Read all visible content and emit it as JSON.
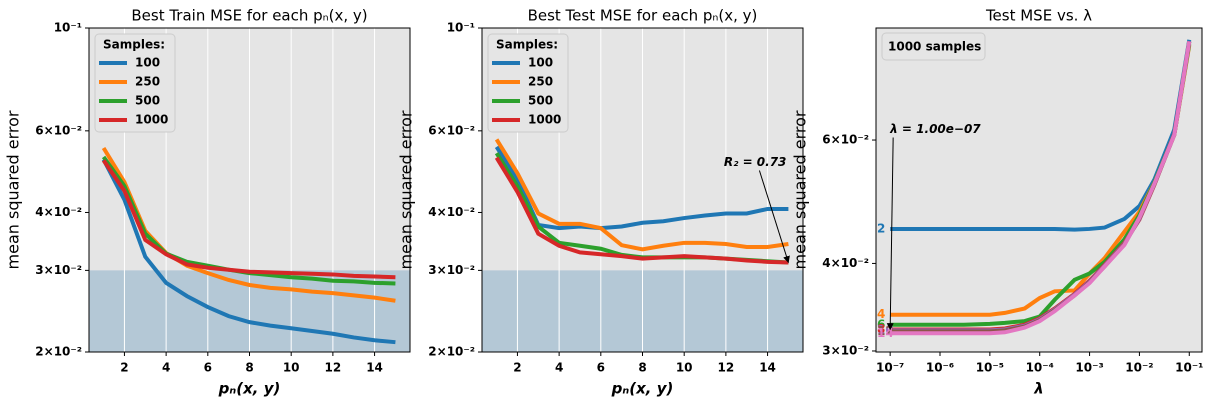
{
  "chart_data": [
    {
      "type": "line",
      "title": "Best Train MSE for each pₙ(x, y)",
      "xlabel": "pₙ(x, y)",
      "ylabel": "mean squared error",
      "x": [
        1,
        2,
        3,
        4,
        5,
        6,
        7,
        8,
        9,
        10,
        11,
        12,
        13,
        14,
        15
      ],
      "series": [
        {
          "name": "100",
          "color": "#1f77b4",
          "values": [
            0.052,
            0.0426,
            0.0321,
            0.0282,
            0.0264,
            0.025,
            0.0239,
            0.0232,
            0.0228,
            0.0225,
            0.0222,
            0.0219,
            0.0215,
            0.0212,
            0.021
          ]
        },
        {
          "name": "250",
          "color": "#ff7f0e",
          "values": [
            0.0551,
            0.0465,
            0.0365,
            0.0327,
            0.0307,
            0.0296,
            0.0286,
            0.0279,
            0.0275,
            0.0273,
            0.027,
            0.0268,
            0.0265,
            0.0262,
            0.0258
          ]
        },
        {
          "name": "500",
          "color": "#2ca02c",
          "values": [
            0.0527,
            0.0456,
            0.036,
            0.0326,
            0.0313,
            0.0307,
            0.0301,
            0.0296,
            0.0293,
            0.029,
            0.0288,
            0.0285,
            0.0284,
            0.0282,
            0.0281
          ]
        },
        {
          "name": "1000",
          "color": "#d62728",
          "values": [
            0.0518,
            0.0445,
            0.0349,
            0.0325,
            0.0309,
            0.0304,
            0.0301,
            0.0298,
            0.0297,
            0.0296,
            0.0295,
            0.0294,
            0.0292,
            0.0291,
            0.029
          ]
        }
      ],
      "legend_title": "Samples:",
      "legend_loc": "upper left",
      "xlim": [
        0.3,
        15.7
      ],
      "ylim": [
        0.02,
        0.1
      ],
      "log_y": true,
      "grid": "x",
      "xticks": [
        2,
        4,
        6,
        8,
        10,
        12,
        14
      ],
      "yticks": [
        {
          "value": 0.02,
          "label": "2×10⁻²"
        },
        {
          "value": 0.03,
          "label": "3×10⁻²"
        },
        {
          "value": 0.04,
          "label": "4×10⁻²"
        },
        {
          "value": 0.06,
          "label": "6×10⁻²"
        },
        {
          "value": 0.1,
          "label": "10⁻¹"
        }
      ],
      "shade_below": 0.03,
      "shade_color": "#b4c8d6"
    },
    {
      "type": "line",
      "title": "Best Test MSE for each pₙ(x, y)",
      "xlabel": "pₙ(x, y)",
      "ylabel": "mean squared error",
      "x": [
        1,
        2,
        3,
        4,
        5,
        6,
        7,
        8,
        9,
        10,
        11,
        12,
        13,
        14,
        15
      ],
      "series": [
        {
          "name": "100",
          "color": "#1f77b4",
          "values": [
            0.0554,
            0.0472,
            0.0376,
            0.037,
            0.0373,
            0.037,
            0.0373,
            0.038,
            0.0383,
            0.0389,
            0.0394,
            0.0398,
            0.0398,
            0.0407,
            0.0407
          ]
        },
        {
          "name": "250",
          "color": "#ff7f0e",
          "values": [
            0.0575,
            0.0486,
            0.0398,
            0.0378,
            0.0378,
            0.037,
            0.034,
            0.0333,
            0.0339,
            0.0344,
            0.0344,
            0.0342,
            0.0337,
            0.0337,
            0.0342
          ]
        },
        {
          "name": "500",
          "color": "#2ca02c",
          "values": [
            0.0537,
            0.0456,
            0.0373,
            0.0344,
            0.0339,
            0.0334,
            0.0324,
            0.032,
            0.032,
            0.032,
            0.032,
            0.0318,
            0.0316,
            0.0314,
            0.0312
          ]
        },
        {
          "name": "1000",
          "color": "#d62728",
          "values": [
            0.0525,
            0.0443,
            0.036,
            0.0339,
            0.0328,
            0.0325,
            0.0322,
            0.0318,
            0.032,
            0.0322,
            0.032,
            0.0318,
            0.0315,
            0.0313,
            0.0312
          ]
        }
      ],
      "legend_title": "Samples:",
      "legend_loc": "upper left",
      "xlim": [
        0.3,
        15.7
      ],
      "ylim": [
        0.02,
        0.1
      ],
      "log_y": true,
      "grid": "x",
      "xticks": [
        2,
        4,
        6,
        8,
        10,
        12,
        14
      ],
      "yticks": [
        {
          "value": 0.02,
          "label": "2×10⁻²"
        },
        {
          "value": 0.03,
          "label": "3×10⁻²"
        },
        {
          "value": 0.04,
          "label": "4×10⁻²"
        },
        {
          "value": 0.06,
          "label": "6×10⁻²"
        },
        {
          "value": 0.1,
          "label": "10⁻¹"
        }
      ],
      "shade_below": 0.03,
      "shade_color": "#b4c8d6",
      "annotation": {
        "text": "R₂ = 0.73",
        "xy": [
          15,
          0.0312
        ]
      }
    },
    {
      "type": "line",
      "title": "Test MSE vs. λ",
      "xlabel": "λ",
      "ylabel": "mean squared error",
      "box_text": "1000 samples",
      "x": [
        1e-07,
        3e-07,
        1e-06,
        3e-06,
        1e-05,
        2e-05,
        5e-05,
        0.0001,
        0.0002,
        0.0005,
        0.001,
        0.002,
        0.005,
        0.01,
        0.02,
        0.05,
        0.1
      ],
      "series": [
        {
          "name": "2",
          "color": "#1f77b4",
          "values": [
            0.0448,
            0.0448,
            0.0448,
            0.0448,
            0.0448,
            0.0448,
            0.0448,
            0.0448,
            0.0448,
            0.0447,
            0.0448,
            0.045,
            0.0463,
            0.0483,
            0.0527,
            0.0621,
            0.0834
          ]
        },
        {
          "name": "4",
          "color": "#ff7f0e",
          "values": [
            0.0338,
            0.0338,
            0.0338,
            0.0338,
            0.0338,
            0.034,
            0.0345,
            0.0357,
            0.0365,
            0.0366,
            0.0387,
            0.0407,
            0.0444,
            0.0474,
            0.0522,
            0.061,
            0.0819
          ]
        },
        {
          "name": "6",
          "color": "#2ca02c",
          "values": [
            0.0327,
            0.0327,
            0.0327,
            0.0327,
            0.0328,
            0.0329,
            0.0331,
            0.0336,
            0.0355,
            0.0379,
            0.0387,
            0.0402,
            0.0433,
            0.0469,
            0.0522,
            0.0612,
            0.0822
          ]
        },
        {
          "name": "8",
          "color": "#d62728",
          "values": [
            0.0322,
            0.0322,
            0.0322,
            0.0322,
            0.0322,
            0.0323,
            0.0327,
            0.0334,
            0.0345,
            0.0362,
            0.0378,
            0.0398,
            0.0428,
            0.0462,
            0.0518,
            0.0612,
            0.0828
          ]
        },
        {
          "name": "10",
          "color": "#9467bd",
          "values": [
            0.0321,
            0.0321,
            0.0321,
            0.0321,
            0.0321,
            0.0322,
            0.0326,
            0.0333,
            0.0344,
            0.0361,
            0.0377,
            0.0397,
            0.0427,
            0.0463,
            0.0519,
            0.0611,
            0.0829
          ]
        },
        {
          "name": "12",
          "color": "#8c564b",
          "values": [
            0.032,
            0.032,
            0.032,
            0.032,
            0.032,
            0.0321,
            0.0325,
            0.0332,
            0.0343,
            0.036,
            0.0376,
            0.0396,
            0.0426,
            0.0464,
            0.0519,
            0.061,
            0.083
          ]
        },
        {
          "name": "14",
          "color": "#e377c2",
          "values": [
            0.0318,
            0.0318,
            0.0318,
            0.0318,
            0.0318,
            0.0319,
            0.0324,
            0.0331,
            0.0342,
            0.036,
            0.0375,
            0.0396,
            0.0425,
            0.0465,
            0.052,
            0.061,
            0.083
          ]
        }
      ],
      "series_labels": true,
      "xlim": [
        5.2e-08,
        0.18
      ],
      "ylim": [
        0.0299,
        0.0867
      ],
      "log_x": true,
      "log_y": true,
      "grid": false,
      "xticks": [
        {
          "value": 1e-07,
          "label": "10⁻⁷"
        },
        {
          "value": 1e-06,
          "label": "10⁻⁶"
        },
        {
          "value": 1e-05,
          "label": "10⁻⁵"
        },
        {
          "value": 0.0001,
          "label": "10⁻⁴"
        },
        {
          "value": 0.001,
          "label": "10⁻³"
        },
        {
          "value": 0.01,
          "label": "10⁻²"
        },
        {
          "value": 0.1,
          "label": "10⁻¹"
        }
      ],
      "yticks": [
        {
          "value": 0.03,
          "label": "3×10⁻²"
        },
        {
          "value": 0.04,
          "label": "4×10⁻²"
        },
        {
          "value": 0.06,
          "label": "6×10⁻²"
        }
      ],
      "annotation": {
        "text": "λ = 1.00e−07",
        "xy": [
          1e-07,
          0.0322
        ]
      }
    }
  ]
}
